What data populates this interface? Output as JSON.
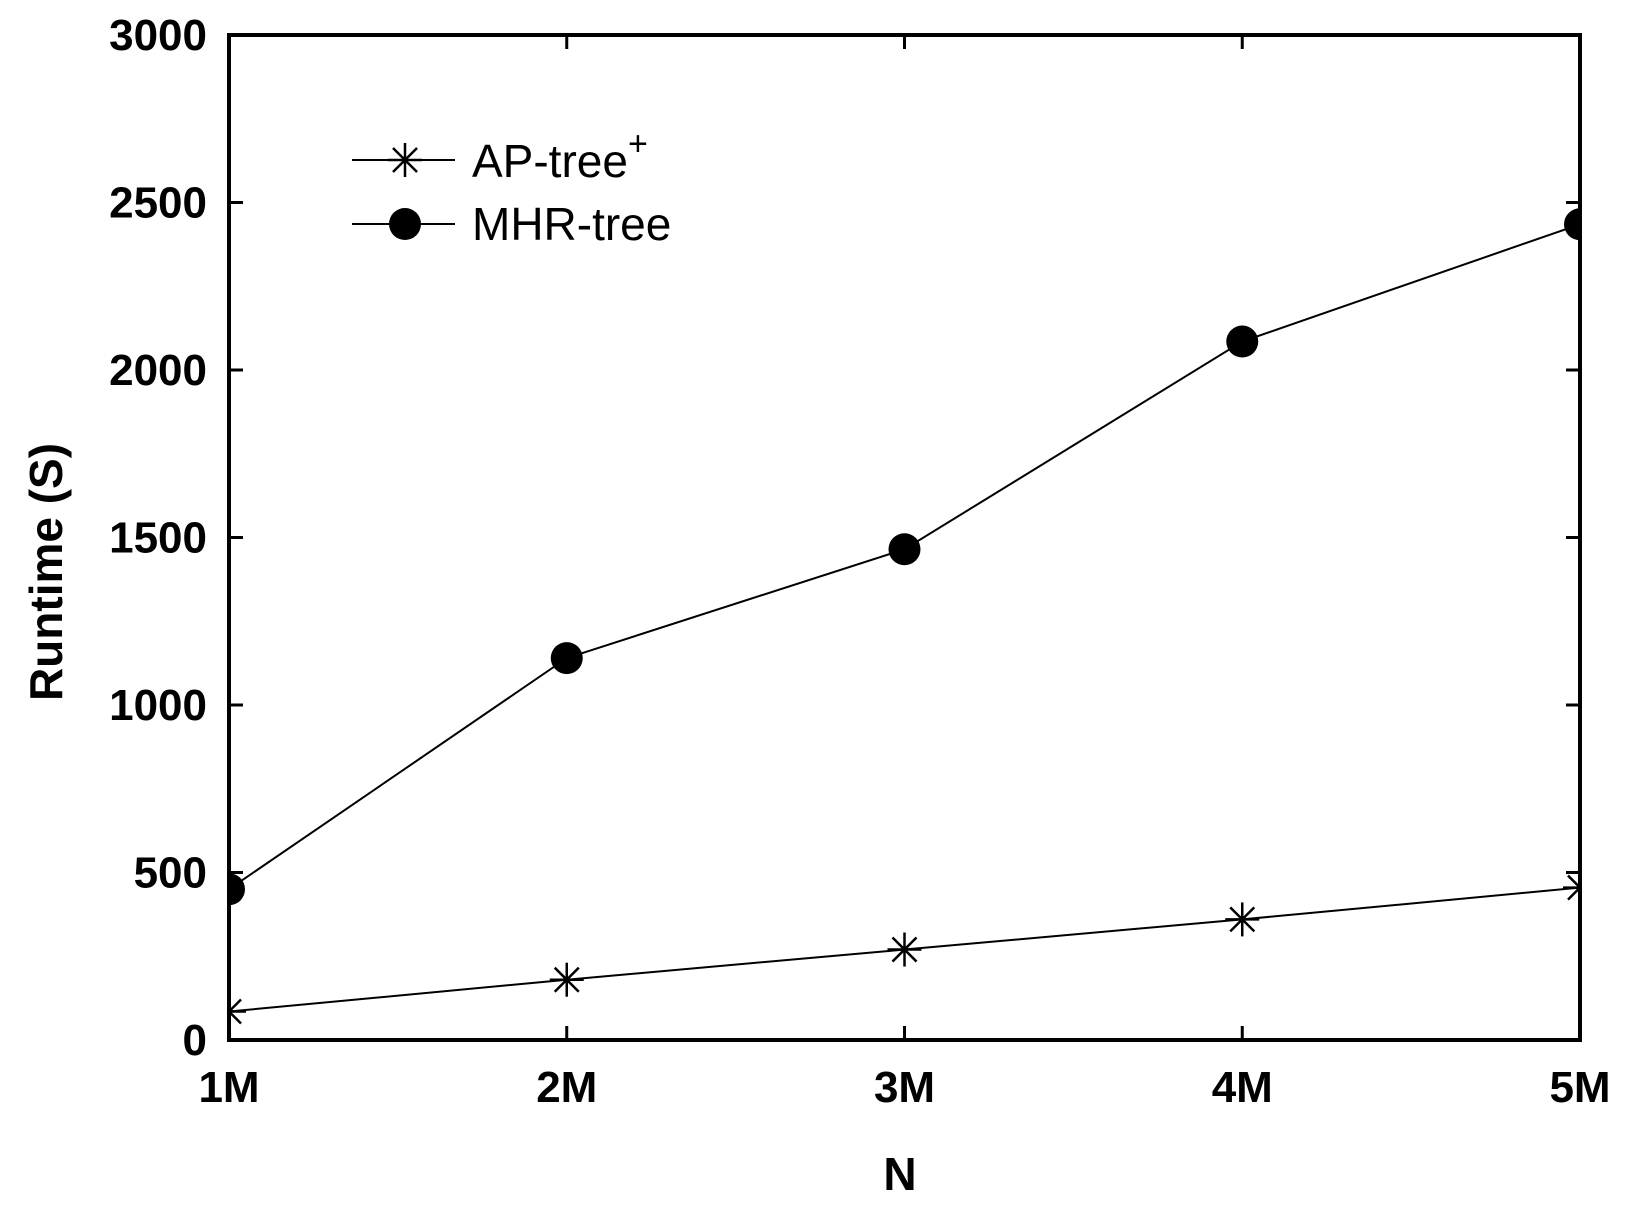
{
  "chart_data": {
    "type": "line",
    "title": "",
    "xlabel": "N",
    "ylabel": "Runtime (S)",
    "categories": [
      "1M",
      "2M",
      "3M",
      "4M",
      "5M"
    ],
    "x": [
      1,
      2,
      3,
      4,
      5
    ],
    "xlim": [
      1,
      5
    ],
    "ylim": [
      0,
      3000
    ],
    "yticks": [
      "0",
      "500",
      "1000",
      "1500",
      "2000",
      "2500",
      "3000"
    ],
    "ytick_values": [
      0,
      500,
      1000,
      1500,
      2000,
      2500,
      3000
    ],
    "grid": false,
    "legend_position": "top-left",
    "series": [
      {
        "name": "AP-tree",
        "name_superscript": "+",
        "marker": "asterisk",
        "color": "#000000",
        "values": [
          85,
          180,
          270,
          360,
          455
        ]
      },
      {
        "name": "MHR-tree",
        "name_superscript": "",
        "marker": "filled-circle",
        "color": "#000000",
        "values": [
          450,
          1140,
          1465,
          2085,
          2435
        ]
      }
    ]
  }
}
